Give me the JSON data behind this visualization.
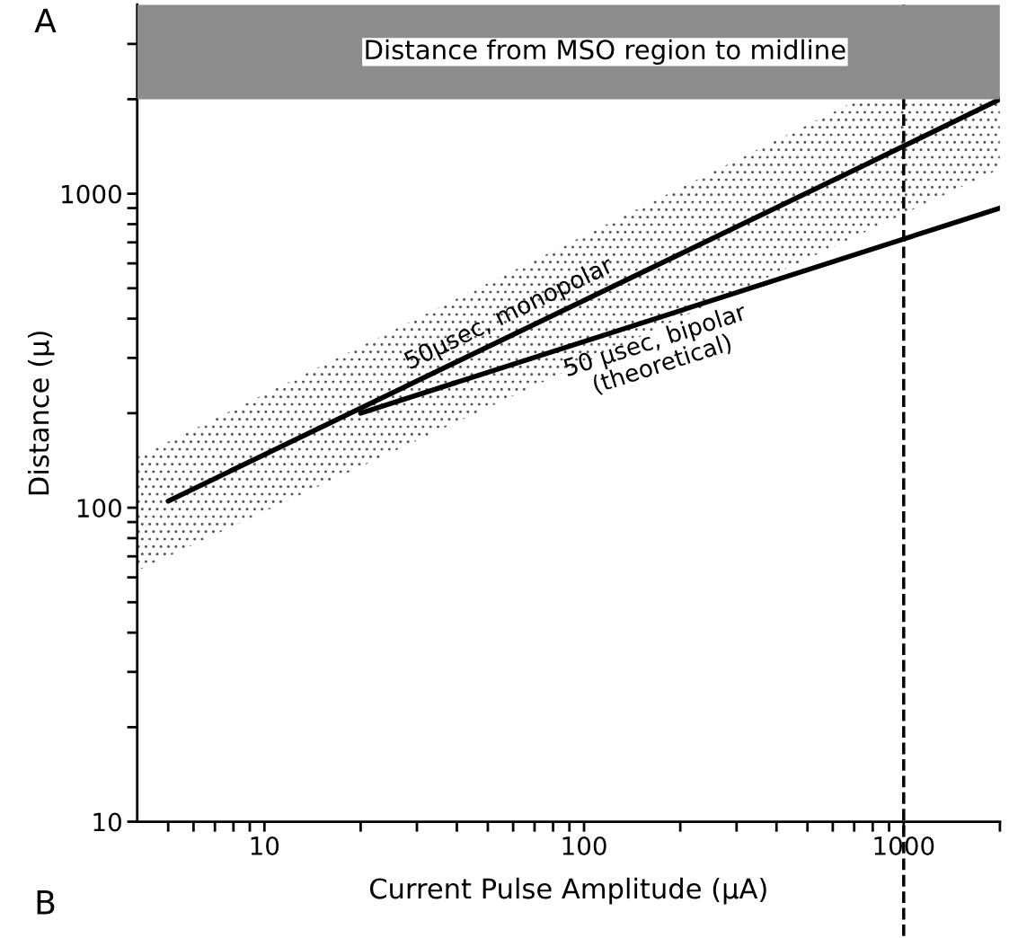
{
  "chart_data": {
    "type": "line",
    "xlabel": "Current Pulse Amplitude (µA)",
    "ylabel": "Distance (µ)",
    "log": "xy",
    "xlim": [
      4,
      2000
    ],
    "ylim": [
      10,
      4000
    ],
    "xticks": [
      {
        "value": 5,
        "label": null
      },
      {
        "value": 6,
        "label": null
      },
      {
        "value": 7,
        "label": null
      },
      {
        "value": 8,
        "label": null
      },
      {
        "value": 9,
        "label": null
      },
      10,
      {
        "value": 20,
        "label": null
      },
      {
        "value": 30,
        "label": null
      },
      {
        "value": 40,
        "label": null
      },
      {
        "value": 50,
        "label": null
      },
      {
        "value": 60,
        "label": null
      },
      {
        "value": 70,
        "label": null
      },
      {
        "value": 80,
        "label": null
      },
      {
        "value": 90,
        "label": null
      },
      100,
      {
        "value": 200,
        "label": null
      },
      {
        "value": 300,
        "label": null
      },
      {
        "value": 400,
        "label": null
      },
      {
        "value": 500,
        "label": null
      },
      {
        "value": 600,
        "label": null
      },
      {
        "value": 700,
        "label": null
      },
      {
        "value": 800,
        "label": null
      },
      {
        "value": 900,
        "label": null
      },
      1000,
      {
        "value": 2000,
        "label": null
      }
    ],
    "yticks": [
      10,
      {
        "value": 20,
        "label": null
      },
      {
        "value": 30,
        "label": null
      },
      {
        "value": 40,
        "label": null
      },
      {
        "value": 50,
        "label": null
      },
      {
        "value": 60,
        "label": null
      },
      {
        "value": 70,
        "label": null
      },
      {
        "value": 80,
        "label": null
      },
      {
        "value": 90,
        "label": null
      },
      100,
      {
        "value": 200,
        "label": null
      },
      {
        "value": 300,
        "label": null
      },
      {
        "value": 400,
        "label": null
      },
      {
        "value": 500,
        "label": null
      },
      {
        "value": 600,
        "label": null
      },
      {
        "value": 700,
        "label": null
      },
      {
        "value": 800,
        "label": null
      },
      {
        "value": 900,
        "label": null
      },
      1000,
      {
        "value": 2000,
        "label": null
      },
      {
        "value": 3000,
        "label": null
      }
    ],
    "series": [
      {
        "name": "50µsec, monopolar",
        "color": "#000000",
        "x": [
          4,
          5,
          725,
          2000
        ],
        "values": [
          null,
          105,
          1210,
          2000
        ],
        "lower": [
          63,
          70,
          740,
          1200
        ],
        "upper": [
          145,
          162,
          2000,
          2000
        ]
      },
      {
        "name": "50 µsec, bipolar\n(theoretical)",
        "color": "#000000",
        "x": [
          20,
          2000
        ],
        "values": [
          200,
          900
        ]
      }
    ],
    "ref_lines": [
      {
        "axis": "x",
        "value": 1000,
        "line_style": "dashed",
        "color": "#000000"
      }
    ],
    "bands": [
      {
        "axis": "y",
        "from": 2000,
        "to": 4000,
        "label": "Distance from MSO region to midline",
        "color": "#8c8c8c"
      }
    ],
    "annotations": [
      "A",
      "B"
    ],
    "grid": false,
    "legend": false,
    "line_style": "solid",
    "marker": "none"
  }
}
